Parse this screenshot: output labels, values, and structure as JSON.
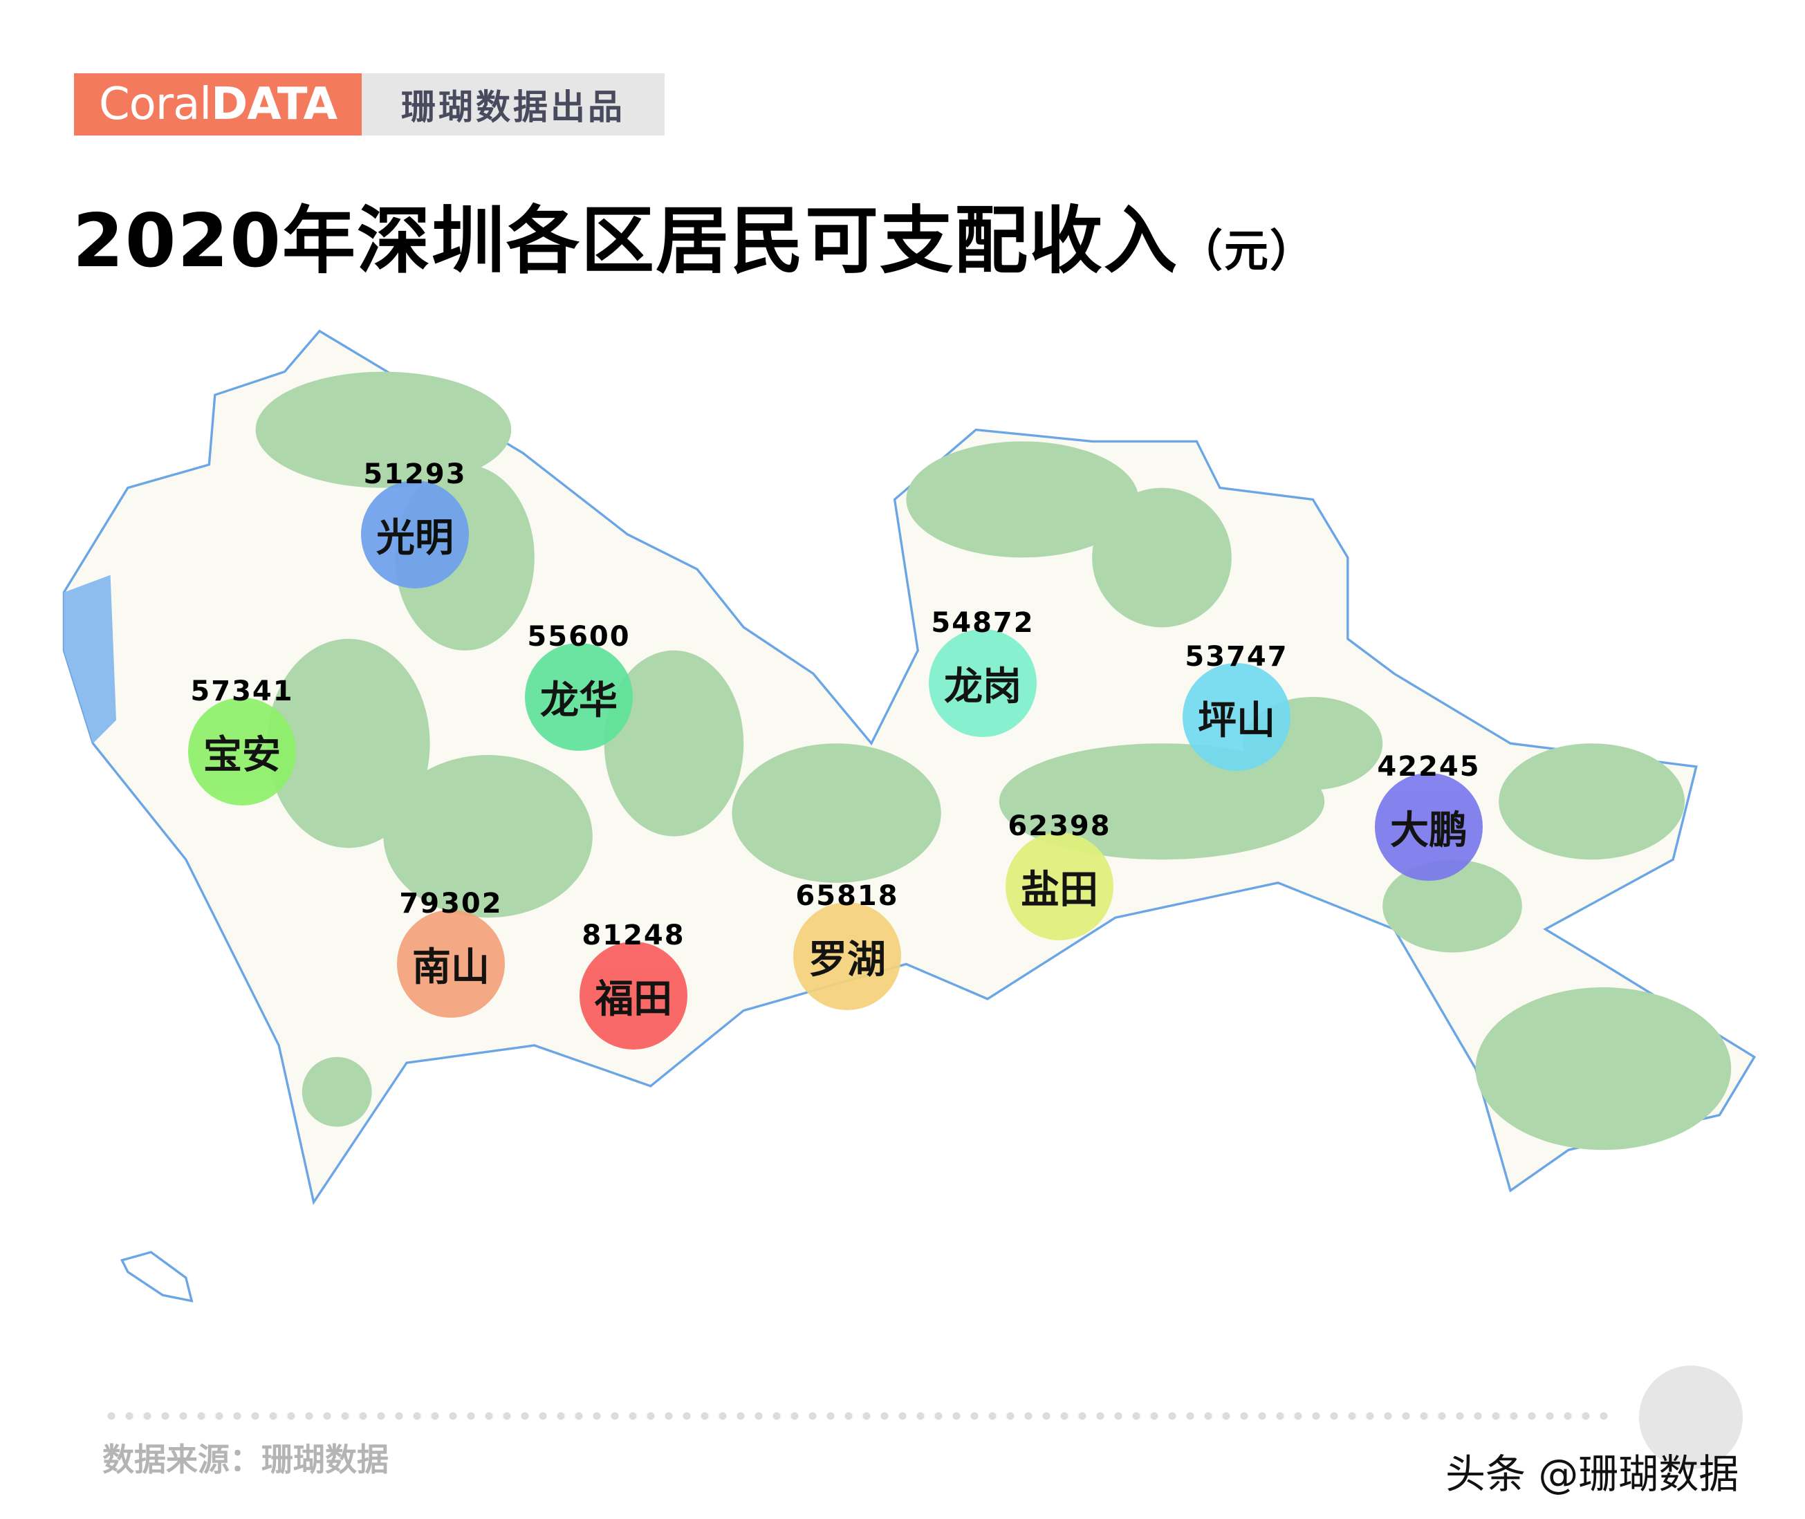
{
  "brand": {
    "logo_light": "Coral",
    "logo_bold": "DATA",
    "tagline": "珊瑚数据出品"
  },
  "title": {
    "main": "2020年深圳各区居民可支配收入",
    "unit": "（元）"
  },
  "districts": [
    {
      "name": "光明",
      "value": "51293",
      "color": "#6fa0ee"
    },
    {
      "name": "龙华",
      "value": "55600",
      "color": "#5ee39a"
    },
    {
      "name": "宝安",
      "value": "57341",
      "color": "#8ef06a"
    },
    {
      "name": "南山",
      "value": "79302",
      "color": "#f4a27a"
    },
    {
      "name": "福田",
      "value": "81248",
      "color": "#f95d5d"
    },
    {
      "name": "罗湖",
      "value": "65818",
      "color": "#f5d27a"
    },
    {
      "name": "盐田",
      "value": "62398",
      "color": "#e0f07a"
    },
    {
      "name": "龙岗",
      "value": "54872",
      "color": "#7ef0cc"
    },
    {
      "name": "坪山",
      "value": "53747",
      "color": "#72daf0"
    },
    {
      "name": "大鹏",
      "value": "42245",
      "color": "#7b79ee"
    }
  ],
  "map_colors": {
    "land": "#fafaf3",
    "green": "#aed7ac",
    "border": "#6aa5e6",
    "water": "#8dbcee"
  },
  "footer": {
    "source": "数据来源：珊瑚数据",
    "watermark": "头条 @珊瑚数据"
  }
}
